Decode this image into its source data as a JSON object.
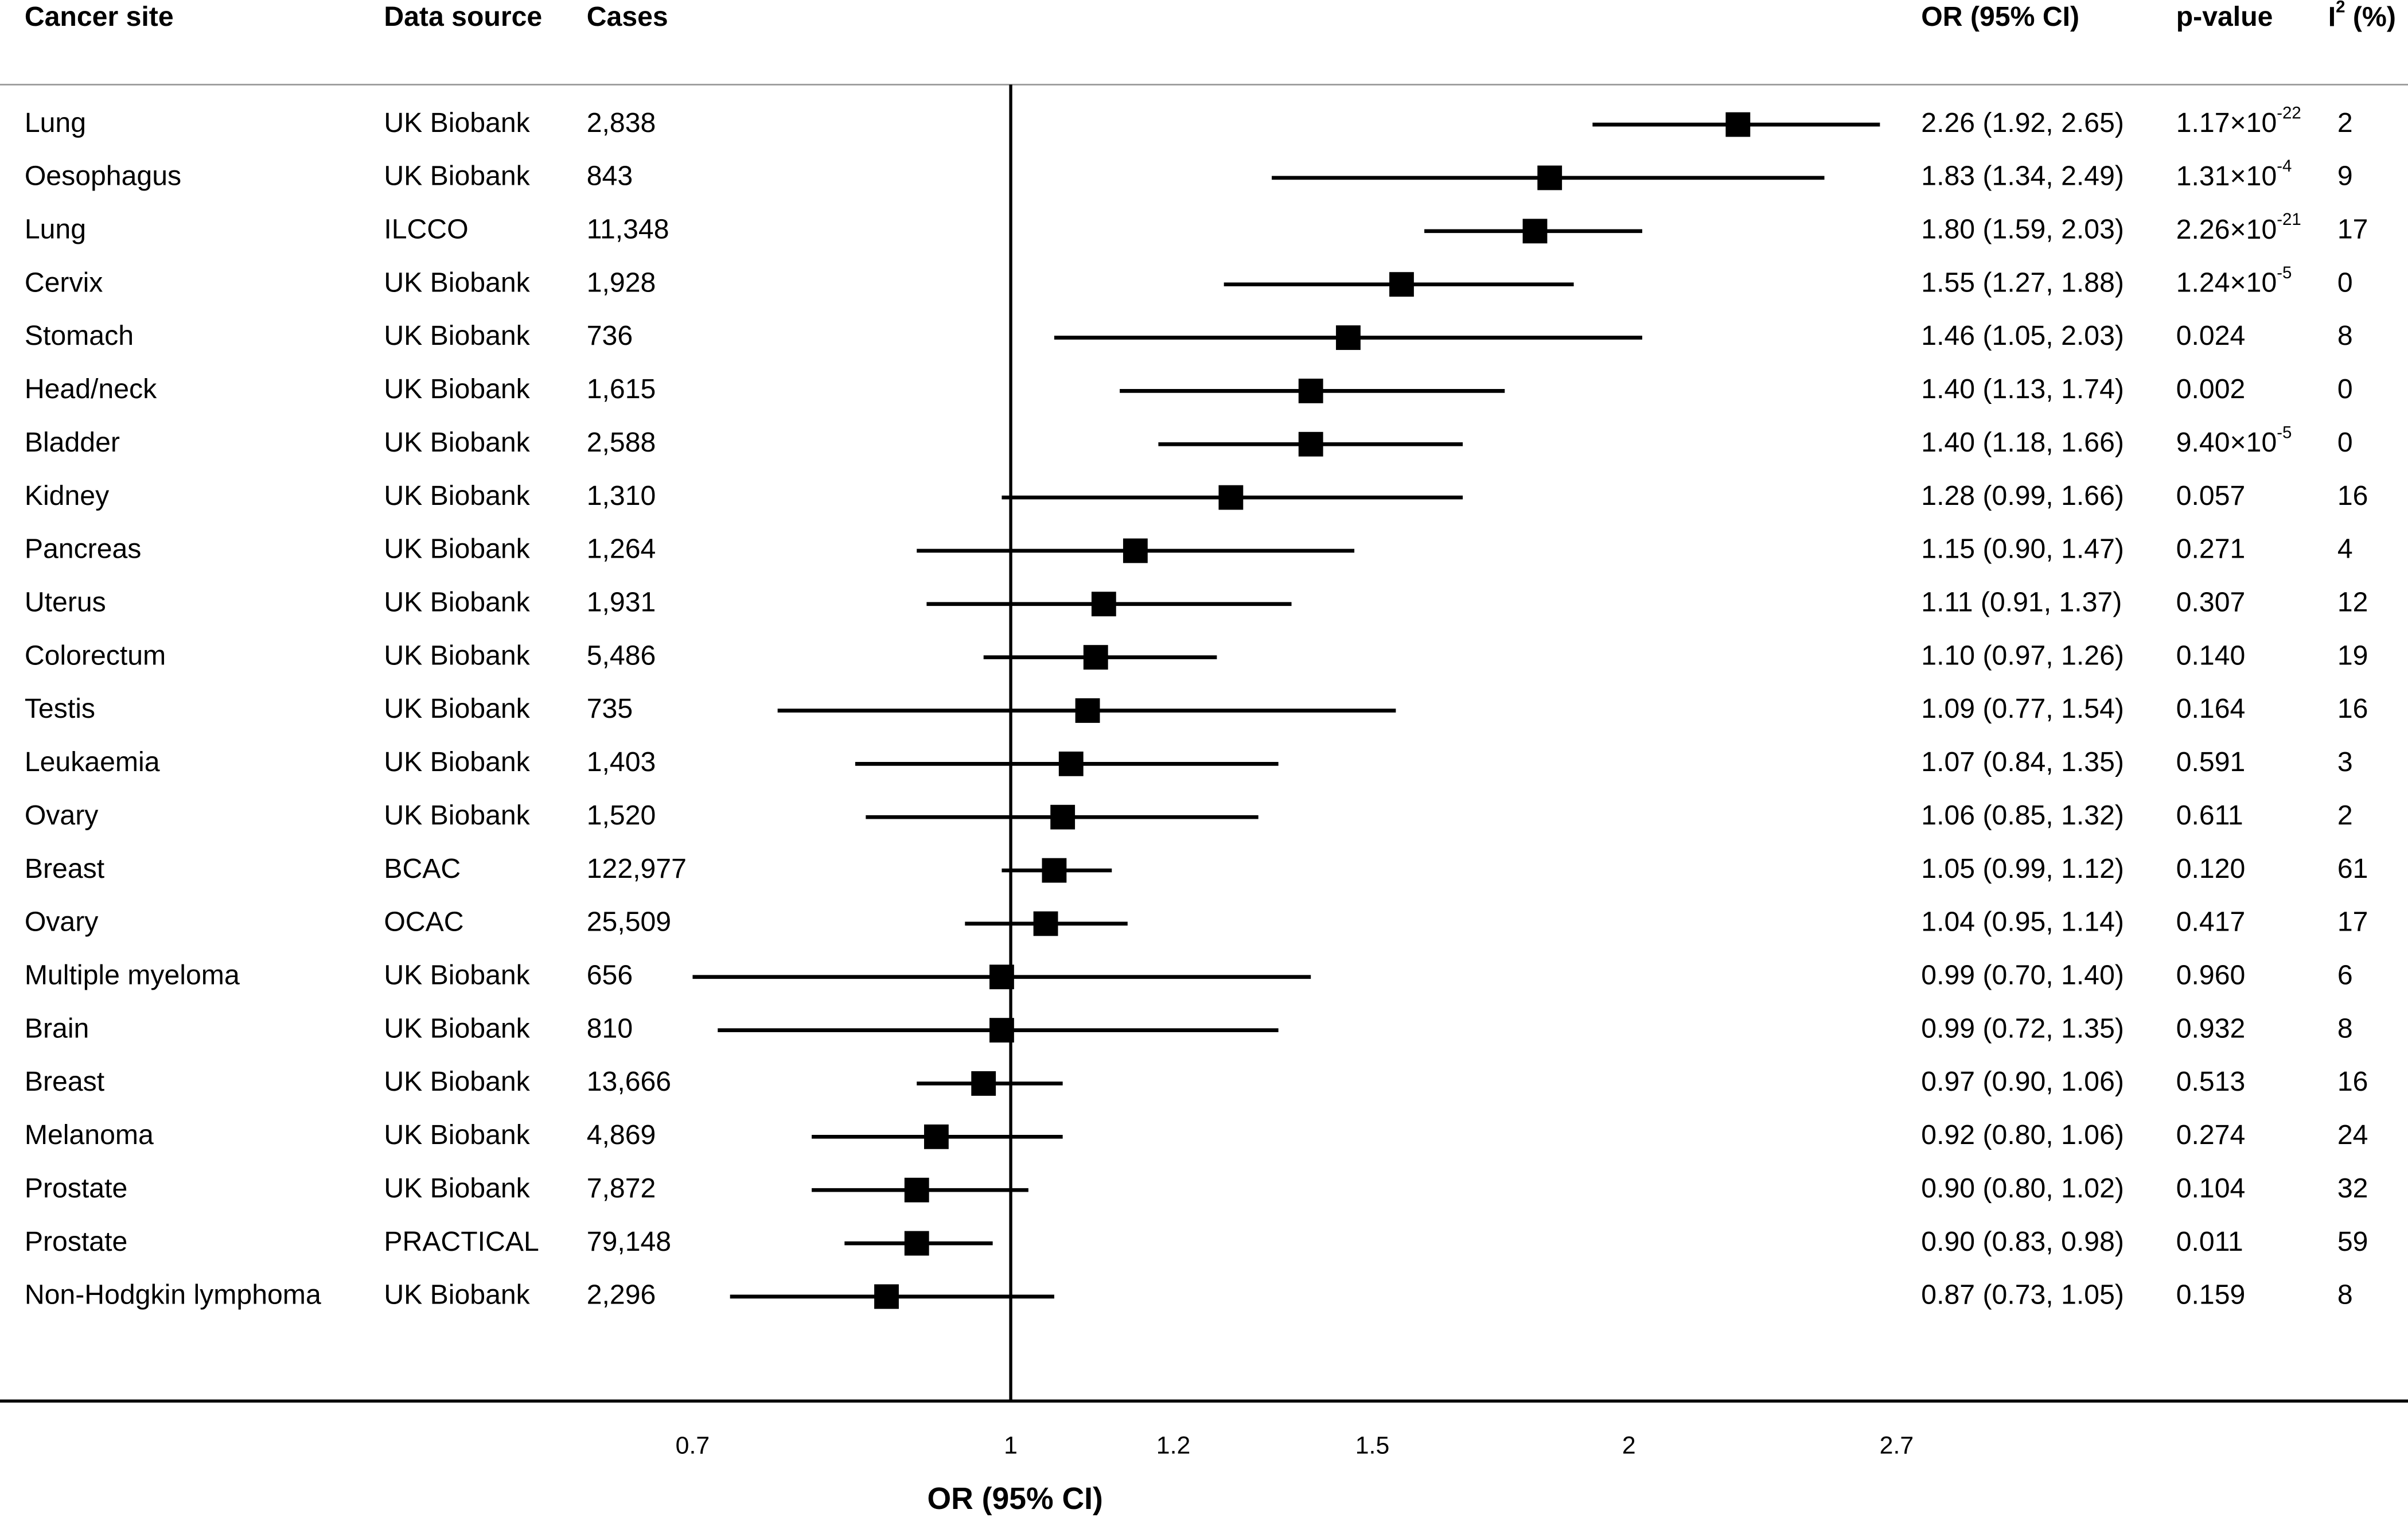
{
  "chart_data": {
    "type": "forest",
    "headers": {
      "site": "Cancer site",
      "source": "Data source",
      "cases": "Cases",
      "or": "OR (95% CI)",
      "p": "p-value",
      "i2": {
        "base": "I",
        "sup": "2",
        "rest": " (%)"
      }
    },
    "x_label": "OR (95% CI)",
    "xscale": "log",
    "xlim": [
      0.7,
      2.7
    ],
    "xticks": [
      0.7,
      1,
      1.2,
      1.5,
      2,
      2.7
    ],
    "reference_line": 1,
    "color": "#000000",
    "rows": [
      {
        "site": "Lung",
        "source": "UK Biobank",
        "cases": "2,838",
        "or": 2.26,
        "ci_lower": 1.92,
        "ci_upper": 2.65,
        "or_label": "2.26 (1.92, 2.65)",
        "p": {
          "base": "1.17×10",
          "exp": "-22"
        },
        "i2": 2
      },
      {
        "site": "Oesophagus",
        "source": "UK Biobank",
        "cases": "843",
        "or": 1.83,
        "ci_lower": 1.34,
        "ci_upper": 2.49,
        "or_label": "1.83 (1.34, 2.49)",
        "p": {
          "base": "1.31×10",
          "exp": "-4"
        },
        "i2": 9
      },
      {
        "site": "Lung",
        "source": "ILCCO",
        "cases": "11,348",
        "or": 1.8,
        "ci_lower": 1.59,
        "ci_upper": 2.03,
        "or_label": "1.80 (1.59, 2.03)",
        "p": {
          "base": "2.26×10",
          "exp": "-21"
        },
        "i2": 17
      },
      {
        "site": "Cervix",
        "source": "UK Biobank",
        "cases": "1,928",
        "or": 1.55,
        "ci_lower": 1.27,
        "ci_upper": 1.88,
        "or_label": "1.55 (1.27, 1.88)",
        "p": {
          "base": "1.24×10",
          "exp": "-5"
        },
        "i2": 0
      },
      {
        "site": "Stomach",
        "source": "UK Biobank",
        "cases": "736",
        "or": 1.46,
        "ci_lower": 1.05,
        "ci_upper": 2.03,
        "or_label": "1.46 (1.05, 2.03)",
        "p": "0.024",
        "i2": 8
      },
      {
        "site": "Head/neck",
        "source": "UK Biobank",
        "cases": "1,615",
        "or": 1.4,
        "ci_lower": 1.13,
        "ci_upper": 1.74,
        "or_label": "1.40 (1.13, 1.74)",
        "p": "0.002",
        "i2": 0
      },
      {
        "site": "Bladder",
        "source": "UK Biobank",
        "cases": "2,588",
        "or": 1.4,
        "ci_lower": 1.18,
        "ci_upper": 1.66,
        "or_label": "1.40 (1.18, 1.66)",
        "p": {
          "base": "9.40×10",
          "exp": "-5"
        },
        "i2": 0
      },
      {
        "site": "Kidney",
        "source": "UK Biobank",
        "cases": "1,310",
        "or": 1.28,
        "ci_lower": 0.99,
        "ci_upper": 1.66,
        "or_label": "1.28 (0.99, 1.66)",
        "p": "0.057",
        "i2": 16
      },
      {
        "site": "Pancreas",
        "source": "UK Biobank",
        "cases": "1,264",
        "or": 1.15,
        "ci_lower": 0.9,
        "ci_upper": 1.47,
        "or_label": "1.15 (0.90, 1.47)",
        "p": "0.271",
        "i2": 4
      },
      {
        "site": "Uterus",
        "source": "UK Biobank",
        "cases": "1,931",
        "or": 1.11,
        "ci_lower": 0.91,
        "ci_upper": 1.37,
        "or_label": "1.11 (0.91, 1.37)",
        "p": "0.307",
        "i2": 12
      },
      {
        "site": "Colorectum",
        "source": "UK Biobank",
        "cases": "5,486",
        "or": 1.1,
        "ci_lower": 0.97,
        "ci_upper": 1.26,
        "or_label": "1.10 (0.97, 1.26)",
        "p": "0.140",
        "i2": 19
      },
      {
        "site": "Testis",
        "source": "UK Biobank",
        "cases": "735",
        "or": 1.09,
        "ci_lower": 0.77,
        "ci_upper": 1.54,
        "or_label": "1.09 (0.77, 1.54)",
        "p": "0.164",
        "i2": 16
      },
      {
        "site": "Leukaemia",
        "source": "UK Biobank",
        "cases": "1,403",
        "or": 1.07,
        "ci_lower": 0.84,
        "ci_upper": 1.35,
        "or_label": "1.07 (0.84, 1.35)",
        "p": "0.591",
        "i2": 3
      },
      {
        "site": "Ovary",
        "source": "UK Biobank",
        "cases": "1,520",
        "or": 1.06,
        "ci_lower": 0.85,
        "ci_upper": 1.32,
        "or_label": "1.06 (0.85, 1.32)",
        "p": "0.611",
        "i2": 2
      },
      {
        "site": "Breast",
        "source": "BCAC",
        "cases": "122,977",
        "or": 1.05,
        "ci_lower": 0.99,
        "ci_upper": 1.12,
        "or_label": "1.05 (0.99, 1.12)",
        "p": "0.120",
        "i2": 61
      },
      {
        "site": "Ovary",
        "source": "OCAC",
        "cases": "25,509",
        "or": 1.04,
        "ci_lower": 0.95,
        "ci_upper": 1.14,
        "or_label": "1.04 (0.95, 1.14)",
        "p": "0.417",
        "i2": 17
      },
      {
        "site": "Multiple myeloma",
        "source": "UK Biobank",
        "cases": "656",
        "or": 0.99,
        "ci_lower": 0.7,
        "ci_upper": 1.4,
        "or_label": "0.99 (0.70, 1.40)",
        "p": "0.960",
        "i2": 6
      },
      {
        "site": "Brain",
        "source": "UK Biobank",
        "cases": "810",
        "or": 0.99,
        "ci_lower": 0.72,
        "ci_upper": 1.35,
        "or_label": "0.99 (0.72, 1.35)",
        "p": "0.932",
        "i2": 8
      },
      {
        "site": "Breast",
        "source": "UK Biobank",
        "cases": "13,666",
        "or": 0.97,
        "ci_lower": 0.9,
        "ci_upper": 1.06,
        "or_label": "0.97 (0.90, 1.06)",
        "p": "0.513",
        "i2": 16
      },
      {
        "site": "Melanoma",
        "source": "UK Biobank",
        "cases": "4,869",
        "or": 0.92,
        "ci_lower": 0.8,
        "ci_upper": 1.06,
        "or_label": "0.92 (0.80, 1.06)",
        "p": "0.274",
        "i2": 24
      },
      {
        "site": "Prostate",
        "source": "UK Biobank",
        "cases": "7,872",
        "or": 0.9,
        "ci_lower": 0.8,
        "ci_upper": 1.02,
        "or_label": "0.90 (0.80, 1.02)",
        "p": "0.104",
        "i2": 32
      },
      {
        "site": "Prostate",
        "source": "PRACTICAL",
        "cases": "79,148",
        "or": 0.9,
        "ci_lower": 0.83,
        "ci_upper": 0.98,
        "or_label": "0.90 (0.83, 0.98)",
        "p": "0.011",
        "i2": 59
      },
      {
        "site": "Non-Hodgkin lymphoma",
        "source": "UK Biobank",
        "cases": "2,296",
        "or": 0.87,
        "ci_lower": 0.73,
        "ci_upper": 1.05,
        "or_label": "0.87 (0.73, 1.05)",
        "p": "0.159",
        "i2": 8
      }
    ]
  }
}
